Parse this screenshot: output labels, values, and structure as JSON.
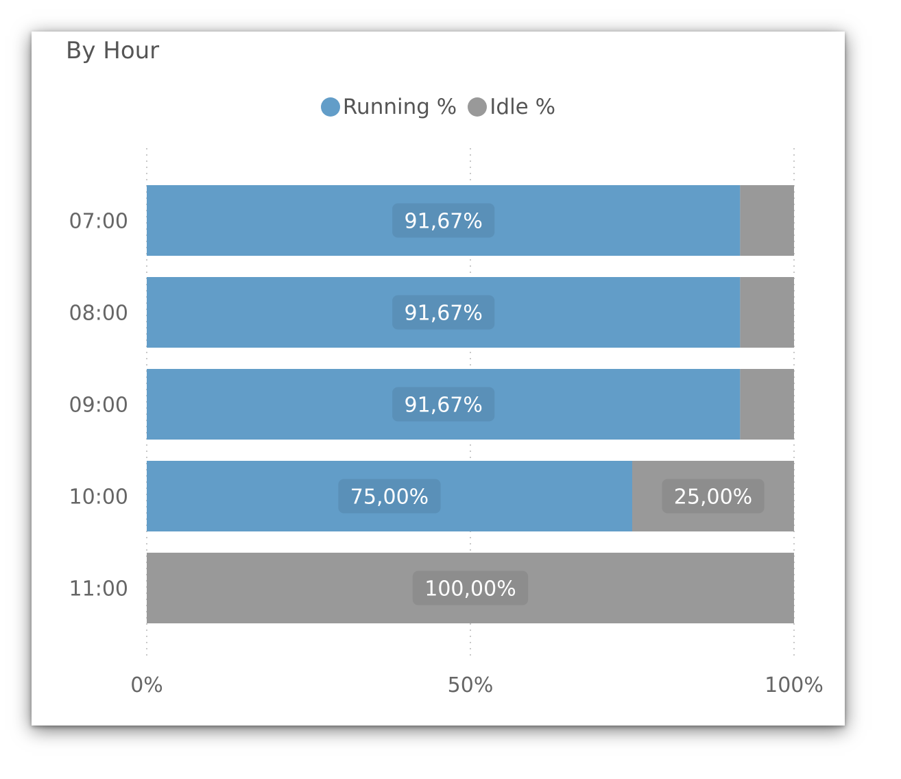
{
  "card": {
    "title": "By Hour"
  },
  "legend": [
    {
      "label": "Running %",
      "color": "#629DC8"
    },
    {
      "label": "Idle %",
      "color": "#999999"
    }
  ],
  "chart_data": {
    "type": "bar",
    "orientation": "horizontal",
    "stacked": "100%",
    "title": "By Hour",
    "categories": [
      "07:00",
      "08:00",
      "09:00",
      "10:00",
      "11:00"
    ],
    "series": [
      {
        "name": "Running %",
        "color": "#629DC8",
        "values": [
          91.67,
          91.67,
          91.67,
          75.0,
          0
        ]
      },
      {
        "name": "Idle %",
        "color": "#999999",
        "values": [
          8.33,
          8.33,
          8.33,
          25.0,
          100.0
        ]
      }
    ],
    "data_labels": [
      [
        "91,67%",
        ""
      ],
      [
        "91,67%",
        ""
      ],
      [
        "91,67%",
        ""
      ],
      [
        "75,00%",
        "25,00%"
      ],
      [
        "",
        "100,00%"
      ]
    ],
    "x_ticks": [
      "0%",
      "50%",
      "100%"
    ],
    "xlim": [
      0,
      100
    ],
    "grid": "vertical dotted",
    "legend_position": "top-center"
  }
}
